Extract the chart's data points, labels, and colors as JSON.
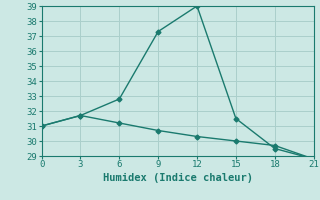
{
  "title": "",
  "xlabel": "Humidex (Indice chaleur)",
  "ylabel": "",
  "line1_x": [
    0,
    3,
    6,
    9,
    12,
    15,
    18,
    21
  ],
  "line1_y": [
    31,
    31.7,
    32.8,
    37.3,
    39.0,
    31.5,
    29.5,
    28.8
  ],
  "line2_x": [
    0,
    3,
    6,
    9,
    12,
    15,
    18,
    21
  ],
  "line2_y": [
    31,
    31.7,
    31.2,
    30.7,
    30.3,
    30.0,
    29.7,
    28.8
  ],
  "line_color": "#1a7a6e",
  "bg_color": "#cce8e4",
  "grid_color": "#aacfcb",
  "xlim": [
    0,
    21
  ],
  "ylim": [
    29,
    39
  ],
  "xticks": [
    0,
    3,
    6,
    9,
    12,
    15,
    18,
    21
  ],
  "yticks": [
    29,
    30,
    31,
    32,
    33,
    34,
    35,
    36,
    37,
    38,
    39
  ],
  "marker": "D",
  "markersize": 2.5,
  "linewidth": 1.0,
  "tick_fontsize": 6.5,
  "xlabel_fontsize": 7.5
}
